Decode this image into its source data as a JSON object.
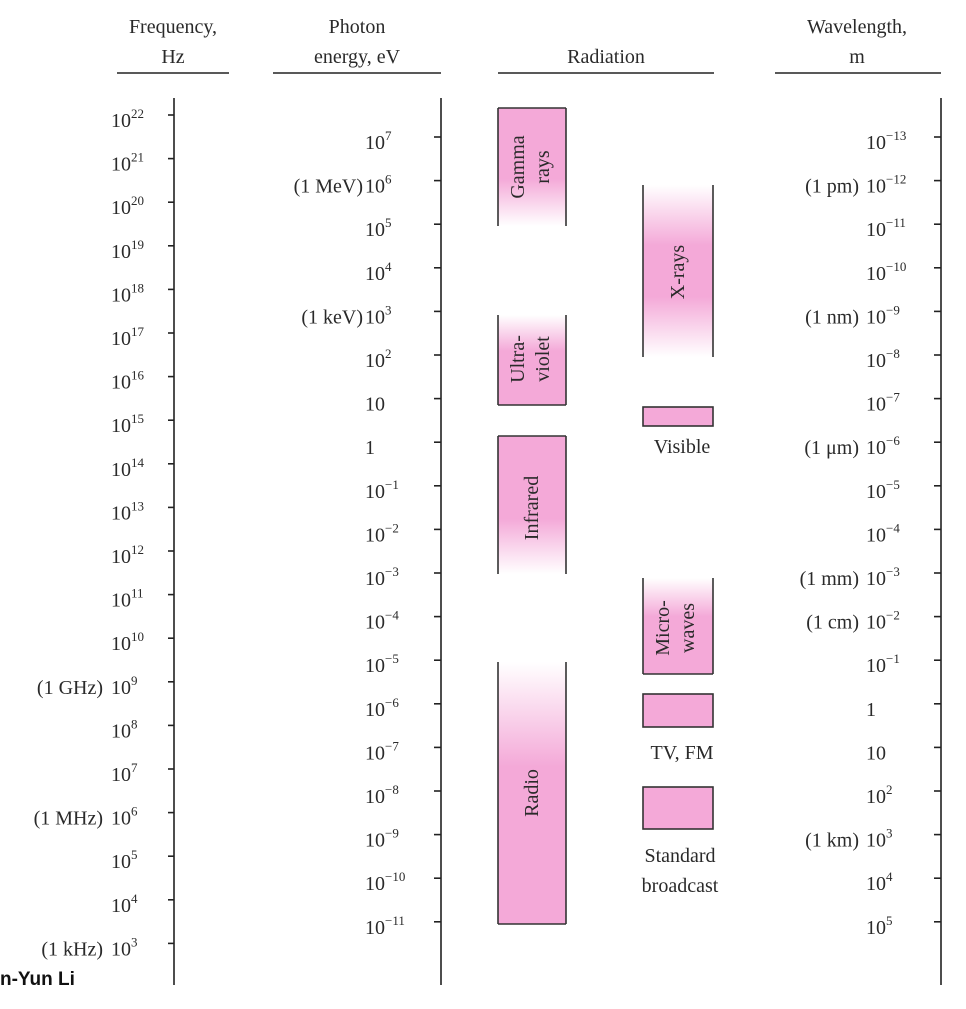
{
  "headers": {
    "frequency": [
      "Frequency,",
      "Hz"
    ],
    "energy": [
      "Photon",
      "energy, eV"
    ],
    "radiation": "Radiation",
    "wavelength": [
      "Wavelength,",
      "m"
    ]
  },
  "frequency_ticks": [
    {
      "prefix": "",
      "base": "10",
      "exp": "22"
    },
    {
      "prefix": "",
      "base": "10",
      "exp": "21"
    },
    {
      "prefix": "",
      "base": "10",
      "exp": "20"
    },
    {
      "prefix": "",
      "base": "10",
      "exp": "19"
    },
    {
      "prefix": "",
      "base": "10",
      "exp": "18"
    },
    {
      "prefix": "",
      "base": "10",
      "exp": "17"
    },
    {
      "prefix": "",
      "base": "10",
      "exp": "16"
    },
    {
      "prefix": "",
      "base": "10",
      "exp": "15"
    },
    {
      "prefix": "",
      "base": "10",
      "exp": "14"
    },
    {
      "prefix": "",
      "base": "10",
      "exp": "13"
    },
    {
      "prefix": "",
      "base": "10",
      "exp": "12"
    },
    {
      "prefix": "",
      "base": "10",
      "exp": "11"
    },
    {
      "prefix": "",
      "base": "10",
      "exp": "10"
    },
    {
      "prefix": "(1 GHz)",
      "base": "10",
      "exp": "9"
    },
    {
      "prefix": "",
      "base": "10",
      "exp": "8"
    },
    {
      "prefix": "",
      "base": "10",
      "exp": "7"
    },
    {
      "prefix": "(1 MHz)",
      "base": "10",
      "exp": "6"
    },
    {
      "prefix": "",
      "base": "10",
      "exp": "5"
    },
    {
      "prefix": "",
      "base": "10",
      "exp": "4"
    },
    {
      "prefix": "(1 kHz)",
      "base": "10",
      "exp": "3"
    }
  ],
  "energy_ticks": [
    {
      "prefix": "",
      "base": "10",
      "exp": "7"
    },
    {
      "prefix": "(1 MeV)",
      "base": "10",
      "exp": "6"
    },
    {
      "prefix": "",
      "base": "10",
      "exp": "5"
    },
    {
      "prefix": "",
      "base": "10",
      "exp": "4"
    },
    {
      "prefix": "(1 keV)",
      "base": "10",
      "exp": "3"
    },
    {
      "prefix": "",
      "base": "10",
      "exp": "2"
    },
    {
      "prefix": "",
      "base": "10",
      "exp": ""
    },
    {
      "prefix": "",
      "base": "1",
      "exp": ""
    },
    {
      "prefix": "",
      "base": "10",
      "exp": "−1"
    },
    {
      "prefix": "",
      "base": "10",
      "exp": "−2"
    },
    {
      "prefix": "",
      "base": "10",
      "exp": "−3"
    },
    {
      "prefix": "",
      "base": "10",
      "exp": "−4"
    },
    {
      "prefix": "",
      "base": "10",
      "exp": "−5"
    },
    {
      "prefix": "",
      "base": "10",
      "exp": "−6"
    },
    {
      "prefix": "",
      "base": "10",
      "exp": "−7"
    },
    {
      "prefix": "",
      "base": "10",
      "exp": "−8"
    },
    {
      "prefix": "",
      "base": "10",
      "exp": "−9"
    },
    {
      "prefix": "",
      "base": "10",
      "exp": "−10"
    },
    {
      "prefix": "",
      "base": "10",
      "exp": "−11"
    }
  ],
  "wavelength_ticks": [
    {
      "prefix": "",
      "base": "10",
      "exp": "−13"
    },
    {
      "prefix": "(1 pm)",
      "base": "10",
      "exp": "−12"
    },
    {
      "prefix": "",
      "base": "10",
      "exp": "−11"
    },
    {
      "prefix": "",
      "base": "10",
      "exp": "−10"
    },
    {
      "prefix": "(1 nm)",
      "base": "10",
      "exp": "−9"
    },
    {
      "prefix": "",
      "base": "10",
      "exp": "−8"
    },
    {
      "prefix": "",
      "base": "10",
      "exp": "−7"
    },
    {
      "prefix": "(1 μm)",
      "base": "10",
      "exp": "−6"
    },
    {
      "prefix": "",
      "base": "10",
      "exp": "−5"
    },
    {
      "prefix": "",
      "base": "10",
      "exp": "−4"
    },
    {
      "prefix": "(1 mm)",
      "base": "10",
      "exp": "−3"
    },
    {
      "prefix": "(1 cm)",
      "base": "10",
      "exp": "−2"
    },
    {
      "prefix": "",
      "base": "10",
      "exp": "−1"
    },
    {
      "prefix": "",
      "base": "1",
      "exp": ""
    },
    {
      "prefix": "",
      "base": "10",
      "exp": ""
    },
    {
      "prefix": "",
      "base": "10",
      "exp": "2"
    },
    {
      "prefix": "(1 km)",
      "base": "10",
      "exp": "3"
    },
    {
      "prefix": "",
      "base": "10",
      "exp": "4"
    },
    {
      "prefix": "",
      "base": "10",
      "exp": "5"
    }
  ],
  "bands": {
    "gamma": [
      "Gamma",
      "rays"
    ],
    "xrays": "X-rays",
    "ultraviolet": [
      "Ultra-",
      "violet"
    ],
    "visible": "Visible",
    "infrared": "Infrared",
    "microwaves": [
      "Micro-",
      "waves"
    ],
    "tv_fm": "TV, FM",
    "radio": "Radio",
    "standard_broadcast": [
      "Standard",
      "broadcast"
    ]
  },
  "colors": {
    "band_fill": "#f4a9d8",
    "band_fade": "#ffffff",
    "axis": "#222222"
  },
  "credit": "n-Yun Li"
}
